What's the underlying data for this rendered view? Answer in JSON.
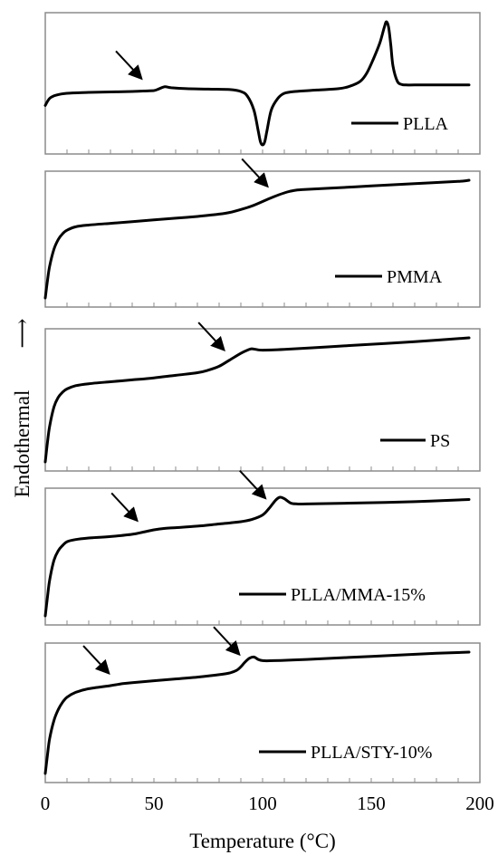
{
  "chart_data": {
    "type": "line",
    "xlabel": "Temperature (°C)",
    "ylabel": "Endothermal",
    "ylabel_arrow": "⟶",
    "xlim": [
      0,
      200
    ],
    "x_ticks": [
      0,
      50,
      100,
      150,
      200
    ],
    "x_minor_step": 10,
    "grid": false,
    "line_color": "#000000",
    "panels": [
      {
        "legend": "PLLA",
        "x": [
          0,
          2,
          5,
          10,
          20,
          30,
          40,
          45,
          50,
          52,
          55,
          58,
          65,
          75,
          85,
          90,
          93,
          96,
          98,
          99,
          100,
          101,
          102,
          104,
          107,
          110,
          115,
          125,
          135,
          140,
          145,
          148,
          151,
          154,
          156,
          157,
          158,
          159,
          160,
          162,
          164,
          166,
          170,
          180,
          195
        ],
        "y": [
          -0.1,
          0.05,
          0.12,
          0.16,
          0.18,
          0.19,
          0.2,
          0.21,
          0.22,
          0.25,
          0.3,
          0.28,
          0.26,
          0.25,
          0.24,
          0.2,
          0.1,
          -0.2,
          -0.65,
          -0.88,
          -0.95,
          -0.88,
          -0.65,
          -0.2,
          0.05,
          0.16,
          0.2,
          0.23,
          0.26,
          0.31,
          0.42,
          0.6,
          0.9,
          1.25,
          1.58,
          1.7,
          1.58,
          1.2,
          0.75,
          0.42,
          0.35,
          0.34,
          0.34,
          0.34,
          0.34
        ],
        "arrows": [
          {
            "x": 45
          }
        ]
      },
      {
        "legend": "PMMA",
        "x": [
          0,
          1,
          2,
          4,
          6,
          8,
          10,
          14,
          20,
          30,
          40,
          50,
          60,
          70,
          80,
          85,
          90,
          95,
          100,
          105,
          110,
          113,
          116,
          120,
          130,
          150,
          170,
          190,
          195
        ],
        "y": [
          -1.3,
          -1.0,
          -0.75,
          -0.45,
          -0.28,
          -0.18,
          -0.12,
          -0.06,
          -0.03,
          0.0,
          0.03,
          0.06,
          0.09,
          0.12,
          0.16,
          0.19,
          0.24,
          0.3,
          0.38,
          0.46,
          0.53,
          0.56,
          0.58,
          0.59,
          0.61,
          0.65,
          0.69,
          0.73,
          0.75
        ],
        "arrows": [
          {
            "x": 103
          }
        ]
      },
      {
        "legend": "PS",
        "x": [
          0,
          1,
          2,
          4,
          6,
          8,
          10,
          14,
          20,
          30,
          40,
          50,
          60,
          70,
          75,
          80,
          85,
          90,
          93,
          95,
          97,
          100,
          110,
          130,
          150,
          170,
          195
        ],
        "y": [
          -1.3,
          -1.0,
          -0.75,
          -0.45,
          -0.3,
          -0.22,
          -0.17,
          -0.12,
          -0.09,
          -0.06,
          -0.03,
          0.0,
          0.04,
          0.08,
          0.12,
          0.18,
          0.28,
          0.38,
          0.43,
          0.45,
          0.44,
          0.43,
          0.44,
          0.48,
          0.52,
          0.56,
          0.62
        ],
        "arrows": [
          {
            "x": 83
          }
        ]
      },
      {
        "legend": "PLLA/MMA-15%",
        "x": [
          0,
          1,
          2,
          4,
          6,
          8,
          10,
          14,
          20,
          30,
          40,
          45,
          50,
          55,
          60,
          70,
          80,
          90,
          95,
          100,
          103,
          106,
          108,
          110,
          113,
          116,
          120,
          140,
          170,
          195
        ],
        "y": [
          -1.2,
          -0.95,
          -0.72,
          -0.45,
          -0.32,
          -0.25,
          -0.2,
          -0.17,
          -0.15,
          -0.13,
          -0.1,
          -0.07,
          -0.04,
          -0.02,
          -0.01,
          0.01,
          0.04,
          0.07,
          0.1,
          0.16,
          0.25,
          0.36,
          0.4,
          0.38,
          0.32,
          0.31,
          0.31,
          0.32,
          0.34,
          0.37
        ],
        "arrows": [
          {
            "x": 43
          },
          {
            "x": 102
          }
        ]
      },
      {
        "legend": "PLLA/STY-10%",
        "x": [
          0,
          1,
          2,
          4,
          6,
          8,
          10,
          14,
          20,
          30,
          35,
          40,
          50,
          60,
          70,
          80,
          85,
          88,
          90,
          92,
          94,
          96,
          98,
          100,
          105,
          120,
          150,
          180,
          195
        ],
        "y": [
          -1.35,
          -1.05,
          -0.78,
          -0.48,
          -0.3,
          -0.18,
          -0.1,
          -0.02,
          0.04,
          0.09,
          0.12,
          0.14,
          0.17,
          0.2,
          0.23,
          0.27,
          0.3,
          0.34,
          0.4,
          0.48,
          0.54,
          0.56,
          0.52,
          0.5,
          0.5,
          0.52,
          0.57,
          0.62,
          0.64
        ],
        "arrows": [
          {
            "x": 30
          },
          {
            "x": 90
          }
        ]
      }
    ]
  }
}
